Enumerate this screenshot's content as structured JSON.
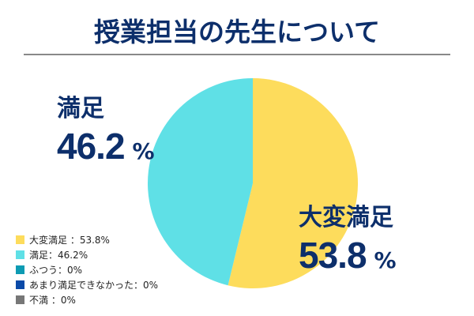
{
  "chart_data": {
    "type": "pie",
    "title": "授業担当の先生について",
    "start": "top",
    "direction": "clockwise",
    "slices": [
      {
        "label": "大変満足",
        "value": 53.8,
        "color": "#fddc5c",
        "legend": "大変満足 ：53.8%"
      },
      {
        "label": "満足",
        "value": 46.2,
        "color": "#5fe0e6",
        "legend": "満足：46.2%"
      },
      {
        "label": "ふつう",
        "value": 0,
        "color": "#0d9bb3",
        "legend": "ふつう：0%"
      },
      {
        "label": "あまり満足できなかった",
        "value": 0,
        "color": "#0b4aa8",
        "legend": "あまり満足できなかった：0%"
      },
      {
        "label": "不満",
        "value": 0,
        "color": "#777777",
        "legend": "不満 ：0%"
      }
    ],
    "callouts": [
      {
        "name": "満足",
        "value": "46.2",
        "unit": "%"
      },
      {
        "name": "大変満足",
        "value": "53.8",
        "unit": "%"
      }
    ],
    "legend_position": "bottom-left"
  }
}
